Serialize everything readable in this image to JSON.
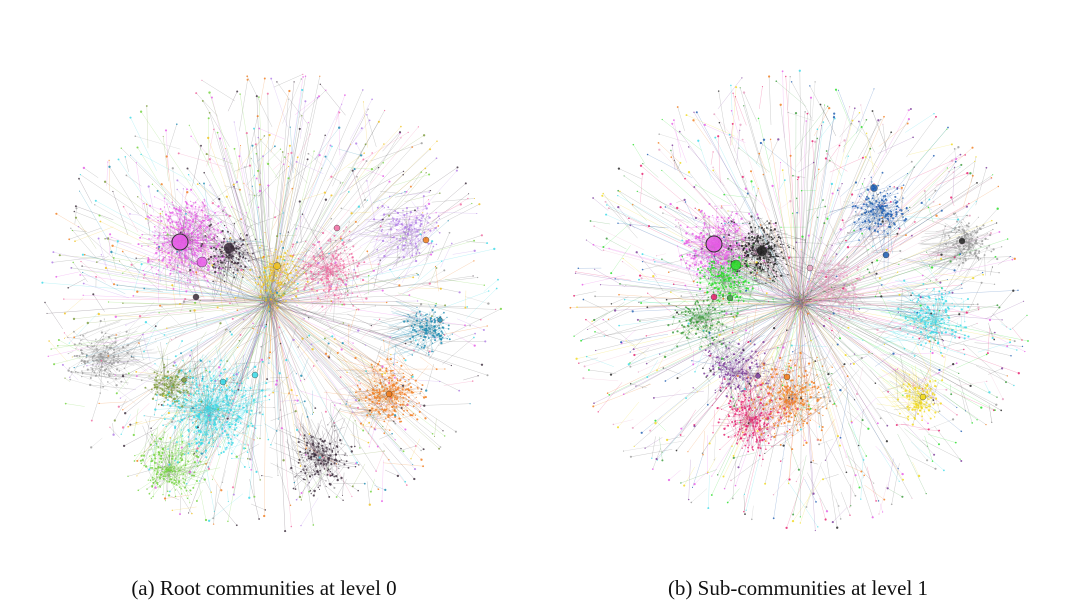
{
  "figure": {
    "panels": [
      {
        "id": "a",
        "caption": "(a) Root communities at level 0",
        "community_colors": [
          "#e65ae6",
          "#3a2a3a",
          "#37d8e6",
          "#6fd23a",
          "#f07a1a",
          "#f06aa0",
          "#f0c01a",
          "#7a9a3a",
          "#1a8ab0",
          "#9a9a9a",
          "#b07ae6"
        ]
      },
      {
        "id": "b",
        "caption": "(b) Sub-communities at level 1",
        "community_colors": [
          "#e65ae6",
          "#1f1f1f",
          "#22dd22",
          "#1a5ab0",
          "#f07a1a",
          "#37d8e6",
          "#f0d81a",
          "#e61a6a",
          "#7a3a9a",
          "#3a9a3a",
          "#9a9a9a",
          "#e6a0c0"
        ]
      }
    ]
  }
}
